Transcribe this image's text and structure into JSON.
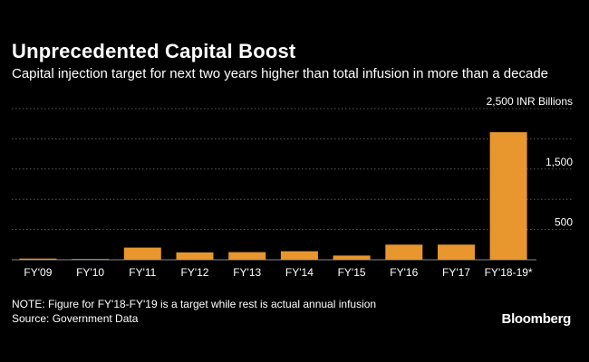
{
  "chart_data": {
    "type": "bar",
    "title": "Unprecedented Capital Boost",
    "subtitle": "Capital injection target for next two years higher than total infusion in more than a decade",
    "unit_label": "2,500 INR Billions",
    "categories": [
      "FY'09",
      "FY'10",
      "FY'11",
      "FY'12",
      "FY'13",
      "FY'14",
      "FY'15",
      "FY'16",
      "FY'17",
      "FY'18-19*"
    ],
    "values": [
      19,
      12,
      201,
      121,
      125,
      141,
      69,
      250,
      250,
      2110
    ],
    "ylim": [
      0,
      2500
    ],
    "yticks": [
      {
        "value": 500,
        "label": "500"
      },
      {
        "value": 1500,
        "label": "1,500"
      },
      {
        "value": 2500,
        "label": "2,500 INR Billions"
      }
    ],
    "gridlines": [
      0,
      500,
      1000,
      1500,
      2000,
      2500
    ],
    "grid": true,
    "bar_color": "#E8962E"
  },
  "footer": {
    "note": "NOTE: Figure for FY'18-FY'19 is a target while rest is actual annual infusion",
    "source": "Source: Government Data",
    "brand": "Bloomberg"
  },
  "colors": {
    "background": "#000000",
    "text": "#ffffff",
    "grid": "#5a5a5a",
    "bar": "#E8962E"
  }
}
